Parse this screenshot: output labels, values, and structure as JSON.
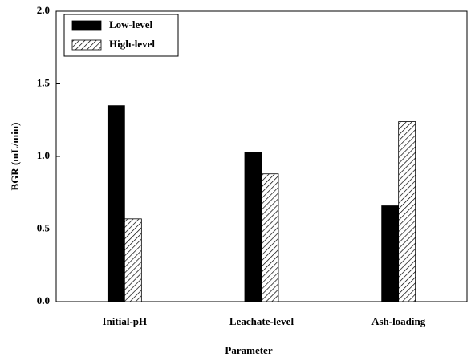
{
  "chart_data": {
    "type": "bar",
    "xlabel": "Parameter",
    "ylabel": "BGR (mL/min)",
    "categories": [
      "Initial-pH",
      "Leachate-level",
      "Ash-loading"
    ],
    "series": [
      {
        "name": "Low-level",
        "color": "#000000",
        "pattern": "solid",
        "values": [
          1.35,
          1.03,
          0.66
        ]
      },
      {
        "name": "High-level",
        "color": "#000000",
        "pattern": "hatch",
        "values": [
          0.57,
          0.88,
          1.24
        ]
      }
    ],
    "ylim": [
      0,
      2
    ],
    "yticks": [
      {
        "value": 0,
        "label": "0.0"
      },
      {
        "value": 0.5,
        "label": "0.5"
      },
      {
        "value": 1,
        "label": "1.0"
      },
      {
        "value": 1.5,
        "label": "1.5"
      },
      {
        "value": 2,
        "label": "2.0"
      }
    ],
    "legend": "upper left",
    "grid": false
  }
}
